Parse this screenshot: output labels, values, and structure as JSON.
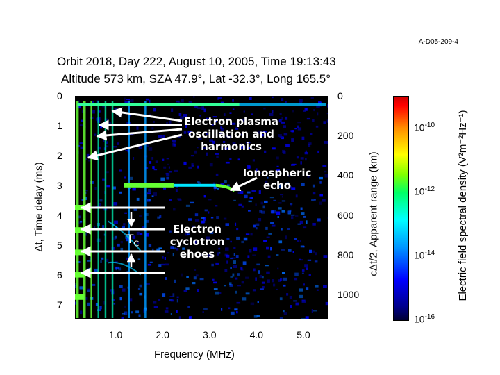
{
  "figure_id": "A-D05-209-4",
  "title_line1": "Orbit 2018,   Day 222,  August 10, 2005,   Time  19:13:43",
  "title_line2": "Altitude  573 km,  SZA  47.9°,  Lat  -32.3°,  Long  165.5°",
  "chart_data": {
    "type": "heatmap",
    "title": "Orbit 2018, Day 222, August 10, 2005, Time 19:13:43",
    "xlabel": "Frequency (MHz)",
    "ylabel_left": "Δt, Time delay (ms)",
    "ylabel_right": "cΔt/2, Apparent range (km)",
    "colorbar_label": "Electric field spectral density (V²m⁻²Hz⁻¹)",
    "xlim": [
      0.1,
      5.5
    ],
    "ylim": [
      0,
      7.5
    ],
    "x_ticks": [
      "1.0",
      "2.0",
      "3.0",
      "4.0",
      "5.0"
    ],
    "y_ticks_left": [
      "0",
      "1",
      "2",
      "3",
      "4",
      "5",
      "6",
      "7"
    ],
    "y_ticks_right": [
      "0",
      "200",
      "400",
      "600",
      "800",
      "1000"
    ],
    "colorbar_ticks": [
      {
        "base": "10",
        "exp": "-10"
      },
      {
        "base": "10",
        "exp": "-12"
      },
      {
        "base": "10",
        "exp": "-14"
      },
      {
        "base": "10",
        "exp": "-16"
      }
    ],
    "colorbar_range_log10": [
      -16,
      -9
    ],
    "plasma_lines_mhz": [
      0.15,
      0.3,
      0.45,
      0.6,
      0.75,
      0.9,
      1.25,
      1.6
    ],
    "cyclotron_echo_delays_ms": [
      3.75,
      4.5,
      5.25,
      6.0,
      6.75
    ],
    "ionospheric_echo": {
      "start_mhz": 1.15,
      "end_mhz": 3.5,
      "delay_ms": 3.0
    }
  },
  "annotations": {
    "plasma_label": "Electron plasma oscillation and harmonics",
    "plasma_line1": "Electron plasma",
    "plasma_line2": "oscillation and",
    "plasma_line3": "harmonics",
    "iono_line1": "Ionospheric",
    "iono_line2": "echo",
    "cyc_line1": "Electron",
    "cyc_line2": "cyclotron",
    "cyc_line3": "ehoes",
    "tc_main": "T",
    "tc_sub": "C"
  },
  "colors": {
    "background": "#ffffff",
    "plot_background": "#000000",
    "annotation": "#ffffff"
  }
}
